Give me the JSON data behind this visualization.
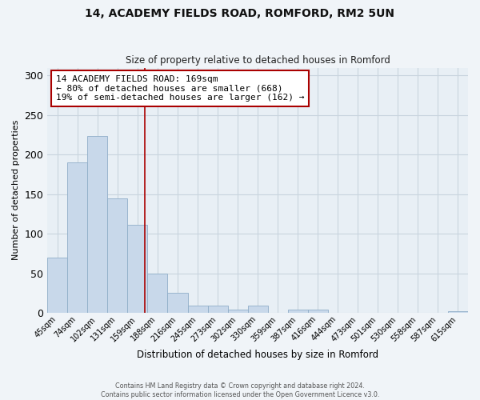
{
  "title": "14, ACADEMY FIELDS ROAD, ROMFORD, RM2 5UN",
  "subtitle": "Size of property relative to detached houses in Romford",
  "xlabel": "Distribution of detached houses by size in Romford",
  "ylabel": "Number of detached properties",
  "bin_labels": [
    "45sqm",
    "74sqm",
    "102sqm",
    "131sqm",
    "159sqm",
    "188sqm",
    "216sqm",
    "245sqm",
    "273sqm",
    "302sqm",
    "330sqm",
    "359sqm",
    "387sqm",
    "416sqm",
    "444sqm",
    "473sqm",
    "501sqm",
    "530sqm",
    "558sqm",
    "587sqm",
    "615sqm"
  ],
  "bar_heights": [
    70,
    190,
    224,
    145,
    111,
    50,
    25,
    9,
    9,
    4,
    9,
    0,
    4,
    4,
    0,
    0,
    0,
    0,
    0,
    0,
    2
  ],
  "bar_color": "#c8d8ea",
  "bar_edgecolor": "#90aec8",
  "vline_x": 4.38,
  "vline_color": "#aa0000",
  "annotation_text": "14 ACADEMY FIELDS ROAD: 169sqm\n← 80% of detached houses are smaller (668)\n19% of semi-detached houses are larger (162) →",
  "annotation_box_edgecolor": "#aa0000",
  "annotation_box_facecolor": "#ffffff",
  "ylim": [
    0,
    310
  ],
  "yticks": [
    0,
    50,
    100,
    150,
    200,
    250,
    300
  ],
  "footer_line1": "Contains HM Land Registry data © Crown copyright and database right 2024.",
  "footer_line2": "Contains public sector information licensed under the Open Government Licence v3.0.",
  "background_color": "#f0f4f8",
  "plot_bg_color": "#e8eff5",
  "grid_color": "#c8d4de"
}
